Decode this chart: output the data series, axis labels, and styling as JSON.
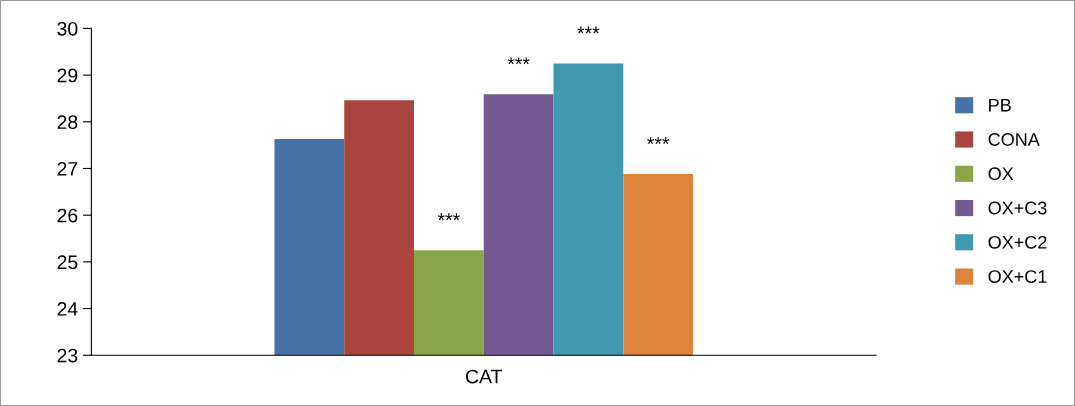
{
  "chart_data": {
    "type": "bar",
    "categories": [
      "CAT"
    ],
    "series": [
      {
        "name": "PB",
        "color": "#4672a8",
        "values": [
          27.63
        ]
      },
      {
        "name": "CONA",
        "color": "#a9443f",
        "values": [
          28.46
        ]
      },
      {
        "name": "OX",
        "color": "#89a64b",
        "values": [
          25.25
        ]
      },
      {
        "name": "OX+C3",
        "color": "#735a92",
        "values": [
          28.59
        ]
      },
      {
        "name": "OX+C2",
        "color": "#4099b0",
        "values": [
          29.25
        ]
      },
      {
        "name": "OX+C1",
        "color": "#dc843b",
        "values": [
          26.88
        ]
      }
    ],
    "ylim": [
      23,
      30
    ],
    "yticks": [
      23,
      24,
      25,
      26,
      27,
      28,
      29,
      30
    ],
    "grid": false,
    "legend": "right",
    "annotations": [
      "***",
      "***",
      "***",
      "***"
    ]
  }
}
